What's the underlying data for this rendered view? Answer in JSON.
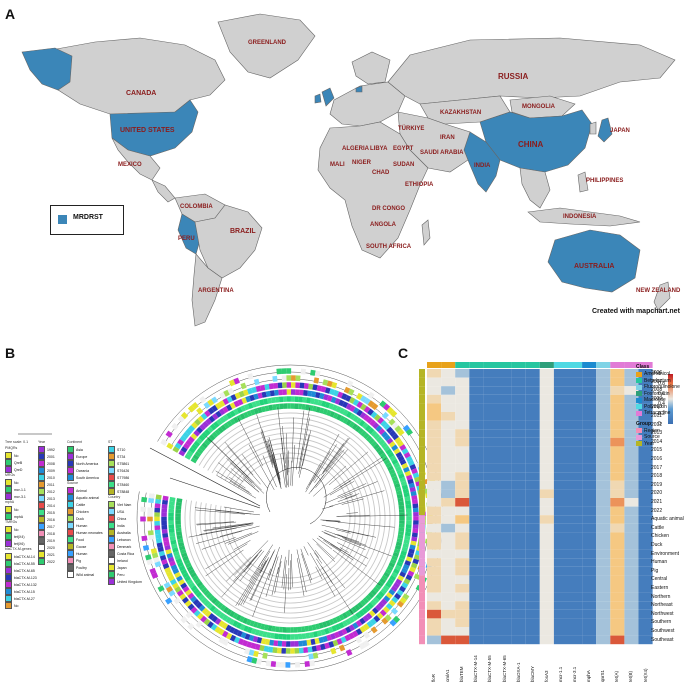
{
  "panels": {
    "a": "A",
    "b": "B",
    "c": "C"
  },
  "map": {
    "legend_label": "MRDRST",
    "credit": "Created with mapchart.net",
    "highlight_color": "#3b86b8",
    "land_color": "#d0d0d0",
    "labels": [
      {
        "text": "GREENLAND"
      },
      {
        "text": "RUSSIA"
      },
      {
        "text": "CANADA"
      },
      {
        "text": "UNITED STATES"
      },
      {
        "text": "MEXICO"
      },
      {
        "text": "BRAZIL"
      },
      {
        "text": "CHINA"
      },
      {
        "text": "INDIA"
      },
      {
        "text": "AUSTRALIA"
      },
      {
        "text": "NEW ZEALAND"
      },
      {
        "text": "KAZAKHSTAN"
      },
      {
        "text": "MONGOLIA"
      },
      {
        "text": "INDONESIA"
      },
      {
        "text": "ARGENTINA"
      },
      {
        "text": "PERU"
      },
      {
        "text": "COLOMBIA"
      },
      {
        "text": "ALGERIA"
      },
      {
        "text": "LIBYA"
      },
      {
        "text": "EGYPT"
      },
      {
        "text": "SUDAN"
      },
      {
        "text": "NIGER"
      },
      {
        "text": "CHAD"
      },
      {
        "text": "MALI"
      },
      {
        "text": "DR CONGO"
      },
      {
        "text": "SOUTH AFRICA"
      },
      {
        "text": "SAUDI ARABIA"
      },
      {
        "text": "IRAN"
      },
      {
        "text": "JAPAN"
      },
      {
        "text": "TÜRKIYE"
      },
      {
        "text": "ETHIOPIA"
      },
      {
        "text": "ANGOLA"
      },
      {
        "text": "PHILIPPINES"
      }
    ]
  },
  "tree_legend": {
    "col1_head": "Tree scale: 0.1",
    "groups": [
      {
        "title": "PMQRs",
        "items": [
          "No",
          "QnrB",
          "QnrD"
        ]
      },
      {
        "title": "MRGs",
        "items": [
          "No",
          "mcr-1.1",
          "mcr-3.1"
        ]
      },
      {
        "title": "mphA",
        "items": [
          "No",
          "mphA"
        ]
      },
      {
        "title": "TMRGs",
        "items": [
          "No",
          "tet(X4)",
          "tet(X6)"
        ]
      },
      {
        "title": "blaCTX-M-genes",
        "items": [
          "blaCTX-M-14",
          "blaCTX-M-55",
          "blaCTX-M-65",
          "blaCTX-M-123",
          "blaCTX-M-132",
          "blaCTX-M-15",
          "blaCTX-M-27",
          "No"
        ]
      }
    ],
    "year_title": "Year",
    "years": [
      "1992",
      "2001",
      "2008",
      "2009",
      "2010",
      "2011",
      "2012",
      "2013",
      "2014",
      "2015",
      "2016",
      "2017",
      "2018",
      "2019",
      "2020",
      "2021",
      "2022"
    ],
    "continent_title": "Continent",
    "continents": [
      "Asia",
      "Europe",
      "North America",
      "Oceania",
      "South America"
    ],
    "source_title": "Source",
    "sources": [
      "Animal",
      "Aquatic animal",
      "Cattle",
      "Chicken",
      "Duck",
      "Human",
      "Human neonates",
      "Food",
      "Goose",
      "Human",
      "Pig",
      "Poultry",
      "Wild animal"
    ],
    "st_title": "ST",
    "sts": [
      "ST10",
      "ST34",
      "ST5861",
      "ST6426",
      "ST7986",
      "ST8460",
      "ST8848"
    ],
    "country_title": "Country",
    "countries": [
      "Viet Nam",
      "USA",
      "China",
      "India",
      "Australia",
      "Lebanon",
      "Denmark",
      "Costa Rica",
      "Ireland",
      "Japan",
      "Peru",
      "United Kingdom"
    ]
  },
  "heatmap": {
    "columns": [
      "floR",
      "cmlA1",
      "blaTEM",
      "blaCTX-M-14",
      "blaCTX-M-55",
      "blaCTX-M-65",
      "blaOXA-1",
      "blaCMY",
      "fosA3",
      "mcr-1.1",
      "mcr-3.1",
      "mphA",
      "qnrS1",
      "tet(A)",
      "tet(B)",
      "tet(X4)"
    ],
    "col_class": [
      "Amphenicol",
      "Amphenicol",
      "Beta-lactam",
      "Beta-lactam",
      "Beta-lactam",
      "Beta-lactam",
      "Beta-lactam",
      "Beta-lactam",
      "Fosfomycin",
      "Polymyxin",
      "Polymyxin",
      "Macrolide",
      "Fluoroquinolone",
      "Tetracycline",
      "Tetracycline",
      "Tetracycline"
    ],
    "rows": [
      "2006",
      "2007",
      "2008",
      "2009",
      "2010",
      "2011",
      "2012",
      "2013",
      "2014",
      "2015",
      "2016",
      "2017",
      "2018",
      "2019",
      "2020",
      "2021",
      "2022",
      "Aquatic animal",
      "Cattle",
      "Chicken",
      "Duck",
      "Environment",
      "Human",
      "Pig",
      "Central",
      "Eastern",
      "Northern",
      "Northeast",
      "Northwest",
      "Southern",
      "Southwest",
      "Southeast"
    ],
    "row_group": [
      "Year",
      "Year",
      "Year",
      "Year",
      "Year",
      "Year",
      "Year",
      "Year",
      "Year",
      "Year",
      "Year",
      "Year",
      "Year",
      "Year",
      "Year",
      "Year",
      "Year",
      "Source",
      "Source",
      "Source",
      "Source",
      "Source",
      "Source",
      "Source",
      "Region",
      "Region",
      "Region",
      "Region",
      "Region",
      "Region",
      "Region",
      "Region"
    ],
    "values": [
      [
        0.6,
        0.5,
        0.4,
        0.1,
        0.1,
        0.1,
        0.1,
        0.1,
        0.5,
        0.1,
        0.1,
        0.1,
        0.4,
        0.7,
        0.4,
        0.1
      ],
      [
        0.5,
        0.5,
        0.5,
        0.1,
        0.1,
        0.1,
        0.1,
        0.1,
        0.5,
        0.1,
        0.1,
        0.1,
        0.4,
        0.7,
        0.4,
        0.1
      ],
      [
        0.5,
        0.4,
        0.5,
        0.1,
        0.1,
        0.1,
        0.1,
        0.1,
        0.5,
        0.1,
        0.1,
        0.1,
        0.4,
        0.6,
        0.5,
        0.1
      ],
      [
        0.6,
        0.5,
        0.5,
        0.1,
        0.1,
        0.1,
        0.1,
        0.1,
        0.5,
        0.1,
        0.1,
        0.1,
        0.4,
        0.7,
        0.4,
        0.1
      ],
      [
        0.7,
        0.5,
        0.5,
        0.1,
        0.1,
        0.1,
        0.1,
        0.1,
        0.5,
        0.1,
        0.1,
        0.1,
        0.4,
        0.7,
        0.4,
        0.1
      ],
      [
        0.7,
        0.6,
        0.5,
        0.1,
        0.1,
        0.1,
        0.1,
        0.1,
        0.5,
        0.1,
        0.1,
        0.1,
        0.4,
        0.7,
        0.4,
        0.1
      ],
      [
        0.6,
        0.5,
        0.5,
        0.1,
        0.1,
        0.1,
        0.1,
        0.1,
        0.5,
        0.1,
        0.1,
        0.1,
        0.4,
        0.7,
        0.4,
        0.1
      ],
      [
        0.6,
        0.5,
        0.6,
        0.1,
        0.1,
        0.1,
        0.1,
        0.1,
        0.5,
        0.1,
        0.1,
        0.1,
        0.4,
        0.7,
        0.4,
        0.1
      ],
      [
        0.6,
        0.5,
        0.6,
        0.1,
        0.1,
        0.1,
        0.1,
        0.1,
        0.5,
        0.1,
        0.1,
        0.1,
        0.4,
        0.8,
        0.4,
        0.1
      ],
      [
        0.6,
        0.5,
        0.5,
        0.1,
        0.1,
        0.1,
        0.1,
        0.1,
        0.5,
        0.1,
        0.1,
        0.1,
        0.4,
        0.7,
        0.4,
        0.1
      ],
      [
        0.6,
        0.5,
        0.5,
        0.1,
        0.1,
        0.1,
        0.1,
        0.1,
        0.5,
        0.1,
        0.1,
        0.1,
        0.4,
        0.7,
        0.4,
        0.1
      ],
      [
        0.6,
        0.5,
        0.5,
        0.1,
        0.1,
        0.1,
        0.1,
        0.1,
        0.5,
        0.1,
        0.1,
        0.1,
        0.4,
        0.7,
        0.4,
        0.1
      ],
      [
        0.6,
        0.5,
        0.6,
        0.1,
        0.1,
        0.1,
        0.1,
        0.1,
        0.5,
        0.1,
        0.1,
        0.1,
        0.4,
        0.7,
        0.4,
        0.1
      ],
      [
        0.5,
        0.4,
        0.6,
        0.1,
        0.1,
        0.1,
        0.1,
        0.1,
        0.5,
        0.1,
        0.1,
        0.1,
        0.4,
        0.6,
        0.4,
        0.1
      ],
      [
        0.5,
        0.4,
        0.6,
        0.1,
        0.1,
        0.1,
        0.1,
        0.1,
        0.6,
        0.1,
        0.1,
        0.1,
        0.4,
        0.6,
        0.4,
        0.1
      ],
      [
        0.5,
        0.6,
        0.9,
        0.1,
        0.1,
        0.1,
        0.1,
        0.1,
        0.5,
        0.1,
        0.1,
        0.1,
        0.4,
        0.8,
        0.5,
        0.1
      ],
      [
        0.6,
        0.5,
        0.5,
        0.1,
        0.1,
        0.1,
        0.1,
        0.1,
        0.5,
        0.1,
        0.1,
        0.1,
        0.4,
        0.7,
        0.4,
        0.1
      ],
      [
        0.6,
        0.5,
        0.7,
        0.1,
        0.1,
        0.1,
        0.1,
        0.1,
        0.6,
        0.1,
        0.1,
        0.1,
        0.4,
        0.7,
        0.4,
        0.1
      ],
      [
        0.5,
        0.4,
        0.5,
        0.1,
        0.1,
        0.1,
        0.1,
        0.1,
        0.5,
        0.1,
        0.1,
        0.1,
        0.4,
        0.6,
        0.4,
        0.1
      ],
      [
        0.6,
        0.5,
        0.6,
        0.1,
        0.1,
        0.1,
        0.1,
        0.1,
        0.5,
        0.1,
        0.1,
        0.1,
        0.4,
        0.7,
        0.4,
        0.1
      ],
      [
        0.6,
        0.5,
        0.6,
        0.1,
        0.1,
        0.1,
        0.1,
        0.1,
        0.5,
        0.1,
        0.1,
        0.1,
        0.4,
        0.7,
        0.4,
        0.1
      ],
      [
        0.5,
        0.5,
        0.5,
        0.1,
        0.1,
        0.1,
        0.1,
        0.1,
        0.5,
        0.1,
        0.1,
        0.1,
        0.4,
        0.7,
        0.4,
        0.1
      ],
      [
        0.6,
        0.5,
        0.6,
        0.1,
        0.1,
        0.1,
        0.1,
        0.1,
        0.5,
        0.1,
        0.1,
        0.1,
        0.4,
        0.7,
        0.4,
        0.1
      ],
      [
        0.6,
        0.5,
        0.6,
        0.1,
        0.1,
        0.1,
        0.1,
        0.1,
        0.5,
        0.1,
        0.1,
        0.1,
        0.4,
        0.7,
        0.4,
        0.1
      ],
      [
        0.6,
        0.5,
        0.5,
        0.1,
        0.1,
        0.1,
        0.1,
        0.1,
        0.5,
        0.1,
        0.1,
        0.1,
        0.4,
        0.7,
        0.4,
        0.1
      ],
      [
        0.6,
        0.5,
        0.6,
        0.1,
        0.1,
        0.1,
        0.1,
        0.1,
        0.5,
        0.1,
        0.1,
        0.1,
        0.4,
        0.7,
        0.4,
        0.1
      ],
      [
        0.5,
        0.5,
        0.5,
        0.1,
        0.1,
        0.1,
        0.1,
        0.1,
        0.5,
        0.1,
        0.1,
        0.1,
        0.4,
        0.7,
        0.4,
        0.1
      ],
      [
        0.6,
        0.5,
        0.6,
        0.1,
        0.1,
        0.1,
        0.1,
        0.1,
        0.5,
        0.1,
        0.1,
        0.1,
        0.4,
        0.7,
        0.4,
        0.1
      ],
      [
        0.9,
        0.6,
        0.6,
        0.1,
        0.1,
        0.1,
        0.1,
        0.1,
        0.5,
        0.1,
        0.1,
        0.1,
        0.4,
        0.7,
        0.4,
        0.1
      ],
      [
        0.6,
        0.5,
        0.6,
        0.1,
        0.1,
        0.1,
        0.1,
        0.1,
        0.5,
        0.1,
        0.1,
        0.1,
        0.4,
        0.7,
        0.4,
        0.1
      ],
      [
        0.6,
        0.5,
        0.5,
        0.1,
        0.1,
        0.1,
        0.1,
        0.1,
        0.5,
        0.1,
        0.1,
        0.1,
        0.4,
        0.7,
        0.4,
        0.1
      ],
      [
        0.4,
        0.9,
        0.9,
        0.1,
        0.1,
        0.1,
        0.1,
        0.1,
        0.5,
        0.1,
        0.1,
        0.1,
        0.4,
        0.9,
        0.4,
        0.1
      ]
    ],
    "scale_ticks": [
      "1",
      "0.8",
      "0.6",
      "0.4",
      "0.2",
      "0"
    ],
    "class_legend_title": "Class",
    "class_legend": [
      {
        "name": "Amphenicol",
        "color": "#e8a21a"
      },
      {
        "name": "Beta-lactam",
        "color": "#26c6a0"
      },
      {
        "name": "Fluoroquinolone",
        "color": "#7fd3e6"
      },
      {
        "name": "Fosfomycin",
        "color": "#2e9f7a"
      },
      {
        "name": "Macrolide",
        "color": "#1b8bd0"
      },
      {
        "name": "Polymyxin",
        "color": "#4fd9e3"
      },
      {
        "name": "Tetracycline",
        "color": "#e17bd6"
      }
    ],
    "group_legend_title": "Group",
    "group_legend": [
      {
        "name": "Region",
        "color": "#f28fb7"
      },
      {
        "name": "Source",
        "color": "#e89ad8"
      },
      {
        "name": "Year",
        "color": "#b5b525"
      }
    ]
  }
}
